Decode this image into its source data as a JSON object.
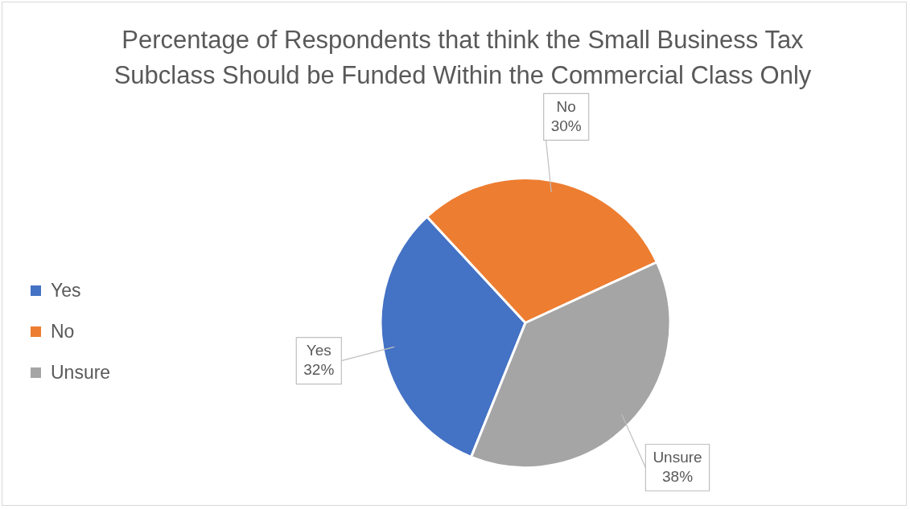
{
  "chart_data": {
    "type": "pie",
    "title": "Percentage of Respondents that think the Small Business Tax Subclass Should be Funded Within the Commercial Class Only",
    "categories": [
      "Yes",
      "No",
      "Unsure"
    ],
    "values": [
      32,
      30,
      38
    ],
    "value_labels": [
      "32%",
      "30%",
      "38%"
    ],
    "colors": [
      "#4472c4",
      "#ed7d31",
      "#a5a5a5"
    ],
    "legend": "left"
  }
}
